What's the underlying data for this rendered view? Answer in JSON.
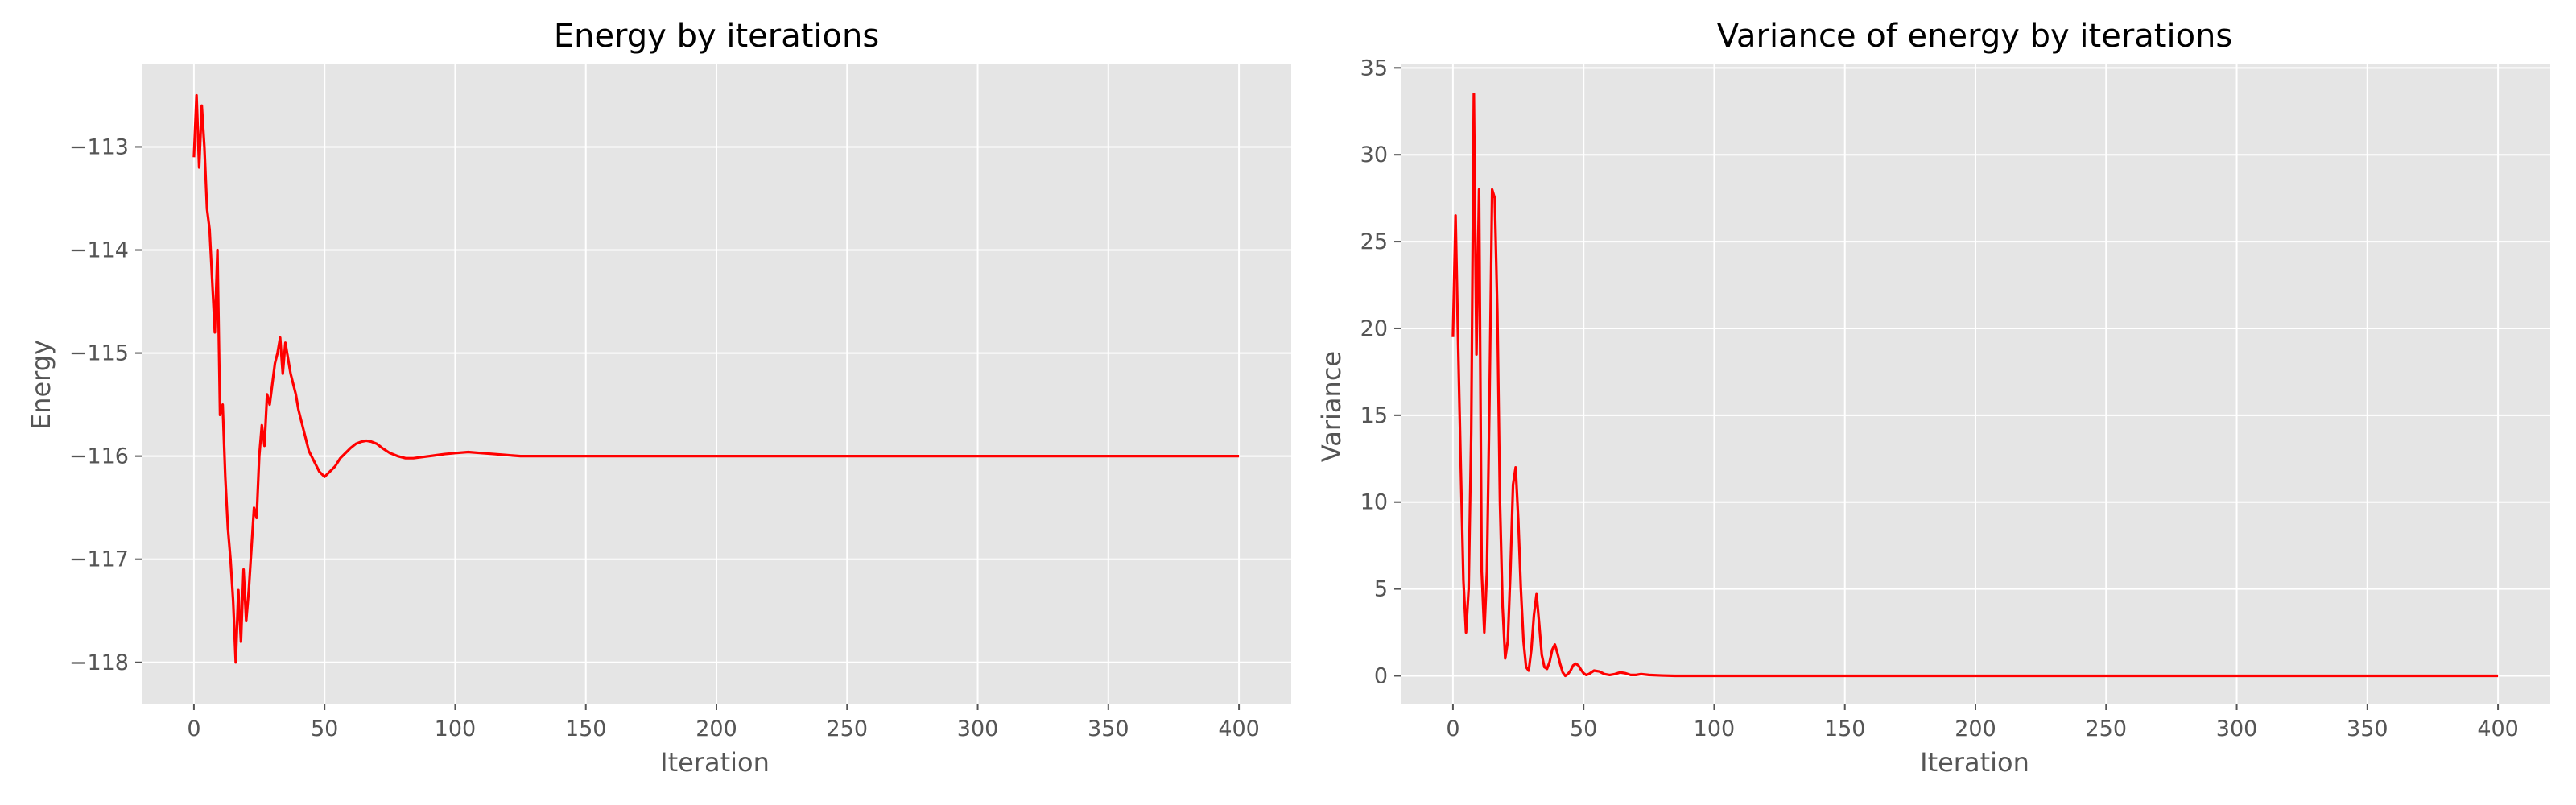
{
  "figure": {
    "background": "#ffffff",
    "panel_color": "#e5e5e5",
    "grid_color": "#ffffff",
    "line_color": "#ff0000"
  },
  "chart_data": [
    {
      "type": "line",
      "title": "Energy by iterations",
      "xlabel": "Iteration",
      "ylabel": "Energy",
      "xlim": [
        -20,
        420
      ],
      "ylim": [
        -118.4,
        -112.2
      ],
      "xticks": [
        0,
        50,
        100,
        150,
        200,
        250,
        300,
        350,
        400
      ],
      "xtick_labels": [
        "0",
        "50",
        "100",
        "150",
        "200",
        "250",
        "300",
        "350",
        "400"
      ],
      "yticks": [
        -118,
        -117,
        -116,
        -115,
        -114,
        -113
      ],
      "ytick_labels": [
        "−118",
        "−117",
        "−116",
        "−115",
        "−114",
        "−113"
      ],
      "grid": true,
      "series": [
        {
          "color": "#ff0000",
          "x": [
            0,
            1,
            2,
            3,
            4,
            5,
            6,
            7,
            8,
            9,
            10,
            11,
            12,
            13,
            14,
            15,
            16,
            17,
            18,
            19,
            20,
            21,
            22,
            23,
            24,
            25,
            26,
            27,
            28,
            29,
            30,
            31,
            32,
            33,
            34,
            35,
            36,
            37,
            38,
            39,
            40,
            42,
            44,
            46,
            48,
            50,
            52,
            54,
            56,
            58,
            60,
            62,
            64,
            66,
            68,
            70,
            72,
            75,
            78,
            81,
            84,
            87,
            90,
            93,
            96,
            100,
            105,
            110,
            115,
            120,
            125,
            130,
            140,
            150,
            160,
            170,
            180,
            200,
            250,
            300,
            350,
            400
          ],
          "y": [
            -113.1,
            -112.5,
            -113.2,
            -112.6,
            -113.0,
            -113.6,
            -113.8,
            -114.3,
            -114.8,
            -114.0,
            -115.6,
            -115.5,
            -116.2,
            -116.7,
            -117.0,
            -117.4,
            -118.0,
            -117.3,
            -117.8,
            -117.1,
            -117.6,
            -117.3,
            -116.9,
            -116.5,
            -116.6,
            -116.0,
            -115.7,
            -115.9,
            -115.4,
            -115.5,
            -115.3,
            -115.1,
            -115.0,
            -114.85,
            -115.2,
            -114.9,
            -115.05,
            -115.2,
            -115.3,
            -115.4,
            -115.55,
            -115.75,
            -115.95,
            -116.05,
            -116.15,
            -116.2,
            -116.15,
            -116.1,
            -116.02,
            -115.97,
            -115.92,
            -115.88,
            -115.86,
            -115.85,
            -115.86,
            -115.88,
            -115.92,
            -115.97,
            -116.0,
            -116.02,
            -116.02,
            -116.01,
            -116.0,
            -115.99,
            -115.98,
            -115.97,
            -115.96,
            -115.97,
            -115.98,
            -115.99,
            -116.0,
            -116.0,
            -116.0,
            -116.0,
            -116.0,
            -116.0,
            -116.0,
            -116.0,
            -116.0,
            -116.0,
            -116.0,
            -116.0
          ]
        }
      ]
    },
    {
      "type": "line",
      "title": "Variance of energy by iterations",
      "xlabel": "Iteration",
      "ylabel": "Variance",
      "xlim": [
        -20,
        420
      ],
      "ylim": [
        -1.6,
        35.2
      ],
      "xticks": [
        0,
        50,
        100,
        150,
        200,
        250,
        300,
        350,
        400
      ],
      "xtick_labels": [
        "0",
        "50",
        "100",
        "150",
        "200",
        "250",
        "300",
        "350",
        "400"
      ],
      "yticks": [
        0,
        5,
        10,
        15,
        20,
        25,
        30,
        35
      ],
      "ytick_labels": [
        "0",
        "5",
        "10",
        "15",
        "20",
        "25",
        "30",
        "35"
      ],
      "grid": true,
      "series": [
        {
          "color": "#ff0000",
          "x": [
            0,
            1,
            2,
            3,
            4,
            5,
            6,
            7,
            8,
            9,
            10,
            11,
            12,
            13,
            14,
            15,
            16,
            17,
            18,
            19,
            20,
            21,
            22,
            23,
            24,
            25,
            26,
            27,
            28,
            29,
            30,
            31,
            32,
            33,
            34,
            35,
            36,
            37,
            38,
            39,
            40,
            41,
            42,
            43,
            44,
            45,
            46,
            47,
            48,
            49,
            50,
            51,
            52,
            54,
            56,
            58,
            60,
            62,
            64,
            66,
            68,
            70,
            72,
            75,
            80,
            85,
            90,
            100,
            150,
            200,
            250,
            300,
            350,
            400
          ],
          "y": [
            19.5,
            26.5,
            19.0,
            12.0,
            5.5,
            2.5,
            5.0,
            14.0,
            33.5,
            18.5,
            28.0,
            6.0,
            2.5,
            6.0,
            16.0,
            28.0,
            27.5,
            21.0,
            10.0,
            4.0,
            1.0,
            2.0,
            6.0,
            11.0,
            12.0,
            9.0,
            5.0,
            2.0,
            0.5,
            0.3,
            1.5,
            3.5,
            4.7,
            3.0,
            1.2,
            0.5,
            0.4,
            0.8,
            1.5,
            1.8,
            1.3,
            0.7,
            0.2,
            0.0,
            0.1,
            0.3,
            0.6,
            0.7,
            0.6,
            0.35,
            0.15,
            0.05,
            0.1,
            0.3,
            0.25,
            0.1,
            0.05,
            0.1,
            0.2,
            0.15,
            0.05,
            0.05,
            0.1,
            0.05,
            0.02,
            0.0,
            0.0,
            0.0,
            0.0,
            0.0,
            0.0,
            0.0,
            0.0,
            0.0
          ]
        }
      ]
    }
  ]
}
